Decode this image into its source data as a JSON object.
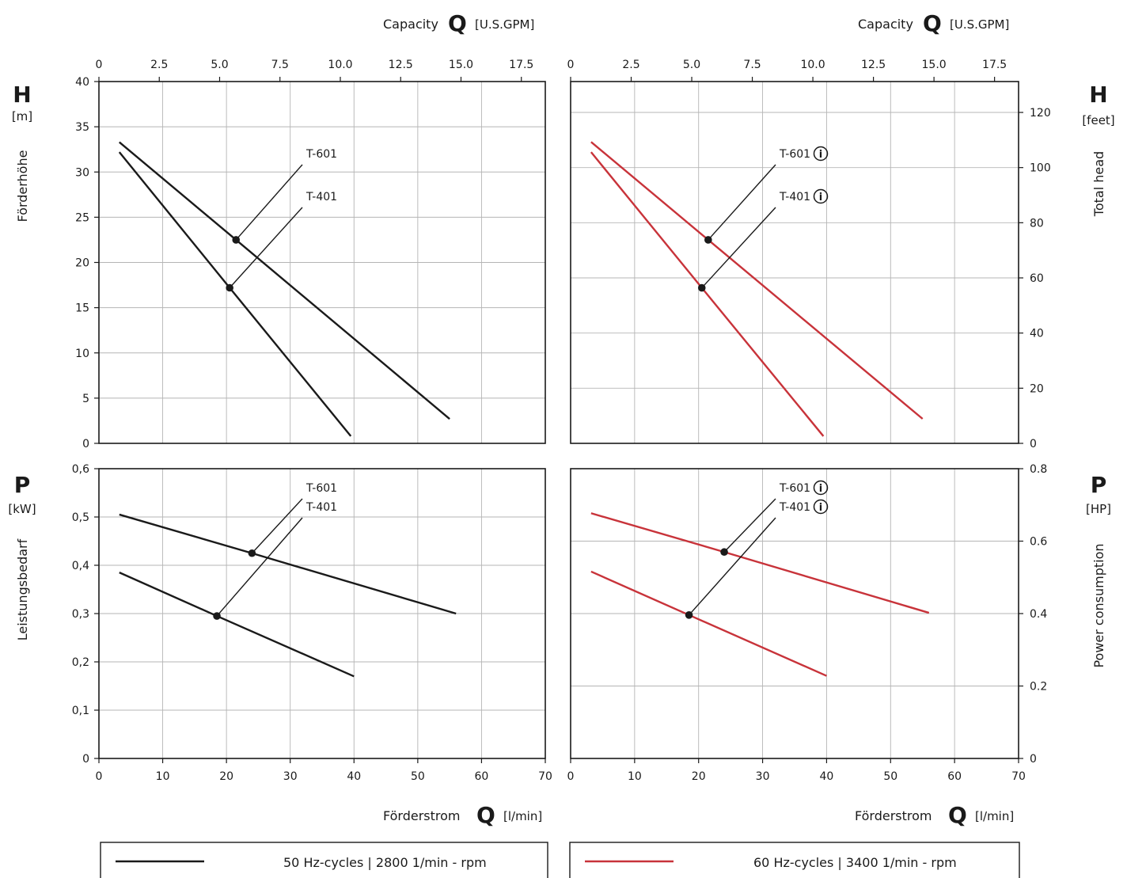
{
  "labels": {
    "capacity_top_left": "Capacity",
    "capacity_top_right": "Capacity",
    "q_symbol": "Q",
    "gpm_unit": "[U.S.GPM]",
    "foerderstrom": "Förderstrom",
    "lmin_unit": "[l/min]",
    "h_symbol": "H",
    "h_unit_left": "[m]",
    "h_unit_right": "[feet]",
    "h_title_left": "Förderhöhe",
    "h_title_right": "Total head",
    "p_symbol": "P",
    "p_unit_left": "[kW]",
    "p_unit_right": "[HP]",
    "p_title_left": "Leistungsbedarf",
    "p_title_right": "Power consumption",
    "series_t601": "T-601",
    "series_t401": "T-401",
    "info_glyph": "i"
  },
  "legend": {
    "left": "50 Hz-cycles | 2800 1/min - rpm",
    "right": "60 Hz-cycles | 3400 1/min - rpm"
  },
  "colors": {
    "hz50": "#1a1a1a",
    "hz60": "#c8333a"
  },
  "chart_data": [
    {
      "type": "line",
      "panel": "head-50hz",
      "xlabel": "Förderstrom Q [l/min]",
      "x2label": "Capacity Q [U.S.GPM]",
      "ylabel": "Förderhöhe H [m]",
      "xlim": [
        0,
        70
      ],
      "ylim": [
        0,
        40
      ],
      "x_ticks": [
        "0",
        "10",
        "20",
        "30",
        "40",
        "50",
        "60",
        "70"
      ],
      "x2_ticks": [
        "0",
        "2.5",
        "5.0",
        "7.5",
        "10.0",
        "12.5",
        "15.0",
        "17.5"
      ],
      "y_ticks": [
        "0",
        "5",
        "10",
        "15",
        "20",
        "25",
        "30",
        "35",
        "40"
      ],
      "grid": true,
      "series": [
        {
          "name": "T-601",
          "points": [
            [
              3.2,
              33.3
            ],
            [
              21.5,
              22.5
            ],
            [
              55.0,
              2.7
            ]
          ],
          "marker": [
            21.5,
            22.5
          ]
        },
        {
          "name": "T-401",
          "points": [
            [
              3.2,
              32.2
            ],
            [
              20.5,
              17.2
            ],
            [
              39.5,
              0.8
            ]
          ],
          "marker": [
            20.5,
            17.2
          ]
        }
      ]
    },
    {
      "type": "line",
      "panel": "head-60hz",
      "xlabel": "Förderstrom Q [l/min]",
      "x2label": "Capacity Q [U.S.GPM]",
      "ylabel": "Total head H [feet]",
      "xlim": [
        0,
        70
      ],
      "ylim": [
        0,
        131.2
      ],
      "x_ticks": [
        "0",
        "10",
        "20",
        "30",
        "40",
        "50",
        "60",
        "70"
      ],
      "x2_ticks": [
        "0",
        "2.5",
        "5.0",
        "7.5",
        "10.0",
        "12.5",
        "15.0",
        "17.5"
      ],
      "y_ticks": [
        "0",
        "20",
        "40",
        "60",
        "80",
        "100",
        "120"
      ],
      "grid": true,
      "series": [
        {
          "name": "T-601",
          "points": [
            [
              3.2,
              109.3
            ],
            [
              21.5,
              73.8
            ],
            [
              55.0,
              8.9
            ]
          ],
          "marker": [
            21.5,
            73.8
          ]
        },
        {
          "name": "T-401",
          "points": [
            [
              3.2,
              105.6
            ],
            [
              20.5,
              56.4
            ],
            [
              39.5,
              2.6
            ]
          ],
          "marker": [
            20.5,
            56.4
          ]
        }
      ]
    },
    {
      "type": "line",
      "panel": "power-50hz",
      "xlabel": "Förderstrom Q [l/min]",
      "ylabel": "Leistungsbedarf P [kW]",
      "xlim": [
        0,
        70
      ],
      "ylim": [
        0,
        0.6
      ],
      "x_ticks": [
        "0",
        "10",
        "20",
        "30",
        "40",
        "50",
        "60",
        "70"
      ],
      "y_ticks": [
        "0",
        "0,1",
        "0,2",
        "0,3",
        "0,4",
        "0,5",
        "0,6"
      ],
      "grid": true,
      "series": [
        {
          "name": "T-601",
          "points": [
            [
              3.2,
              0.505
            ],
            [
              24.0,
              0.425
            ],
            [
              56.0,
              0.3
            ]
          ],
          "marker": [
            24.0,
            0.425
          ]
        },
        {
          "name": "T-401",
          "points": [
            [
              3.2,
              0.385
            ],
            [
              18.5,
              0.295
            ],
            [
              40.0,
              0.17
            ]
          ],
          "marker": [
            18.5,
            0.295
          ]
        }
      ]
    },
    {
      "type": "line",
      "panel": "power-60hz",
      "xlabel": "Förderstrom Q [l/min]",
      "ylabel": "Power consumption P [HP]",
      "xlim": [
        0,
        70
      ],
      "ylim": [
        0,
        0.8
      ],
      "x_ticks": [
        "0",
        "10",
        "20",
        "30",
        "40",
        "50",
        "60",
        "70"
      ],
      "y_ticks": [
        "0",
        "0.2",
        "0.4",
        "0.6",
        "0.8"
      ],
      "grid": true,
      "series": [
        {
          "name": "T-601",
          "points": [
            [
              3.2,
              0.677
            ],
            [
              24.0,
              0.57
            ],
            [
              56.0,
              0.402
            ]
          ],
          "marker": [
            24.0,
            0.57
          ]
        },
        {
          "name": "T-401",
          "points": [
            [
              3.2,
              0.516
            ],
            [
              18.5,
              0.396
            ],
            [
              40.0,
              0.228
            ]
          ],
          "marker": [
            18.5,
            0.396
          ]
        }
      ]
    }
  ]
}
